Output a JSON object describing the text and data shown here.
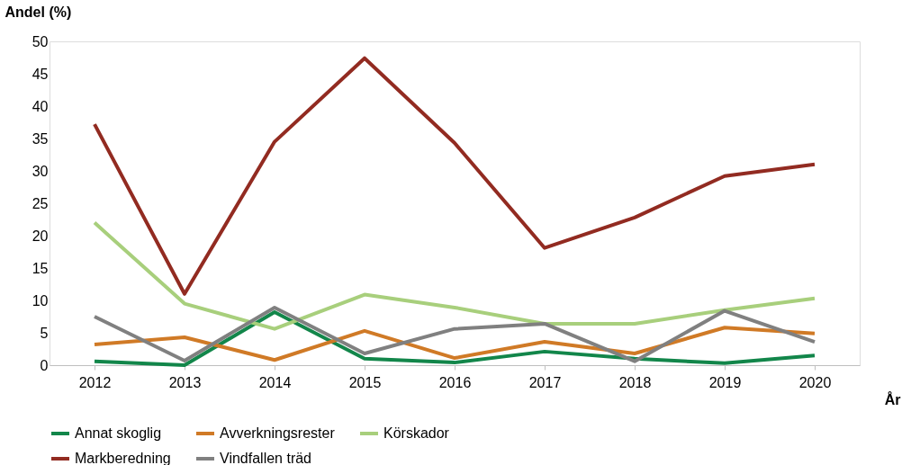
{
  "chart_data": {
    "type": "line",
    "ylabel": "Andel (%)",
    "xlabel": "År",
    "categories": [
      "2012",
      "2013",
      "2014",
      "2015",
      "2016",
      "2017",
      "2018",
      "2019",
      "2020"
    ],
    "series": [
      {
        "name": "Annat skoglig",
        "color": "#12864a",
        "values": [
          0.6,
          0,
          8.2,
          1,
          0.4,
          2.1,
          1,
          0.3,
          1.5
        ]
      },
      {
        "name": "Avverkningsrester",
        "color": "#d07a26",
        "values": [
          3.2,
          4.3,
          0.8,
          5.3,
          1.1,
          3.6,
          1.8,
          5.8,
          4.9
        ]
      },
      {
        "name": "Körskador",
        "color": "#a8cf7c",
        "values": [
          22,
          9.5,
          5.6,
          10.9,
          8.9,
          6.4,
          6.4,
          8.5,
          10.3
        ]
      },
      {
        "name": "Markberedning",
        "color": "#922b21",
        "values": [
          37.2,
          11,
          34.5,
          47.4,
          34.3,
          18.1,
          22.8,
          29.2,
          31
        ]
      },
      {
        "name": "Vindfallen träd",
        "color": "#808080",
        "values": [
          7.5,
          0.7,
          8.9,
          1.8,
          5.6,
          6.4,
          0.6,
          8.4,
          3.6
        ]
      }
    ],
    "ylim": [
      0,
      50
    ],
    "yticks": [
      0,
      5,
      10,
      15,
      20,
      25,
      30,
      35,
      40,
      45,
      50
    ],
    "grid": false,
    "legend": "bottom",
    "marker": "none",
    "line_style": "solid"
  }
}
